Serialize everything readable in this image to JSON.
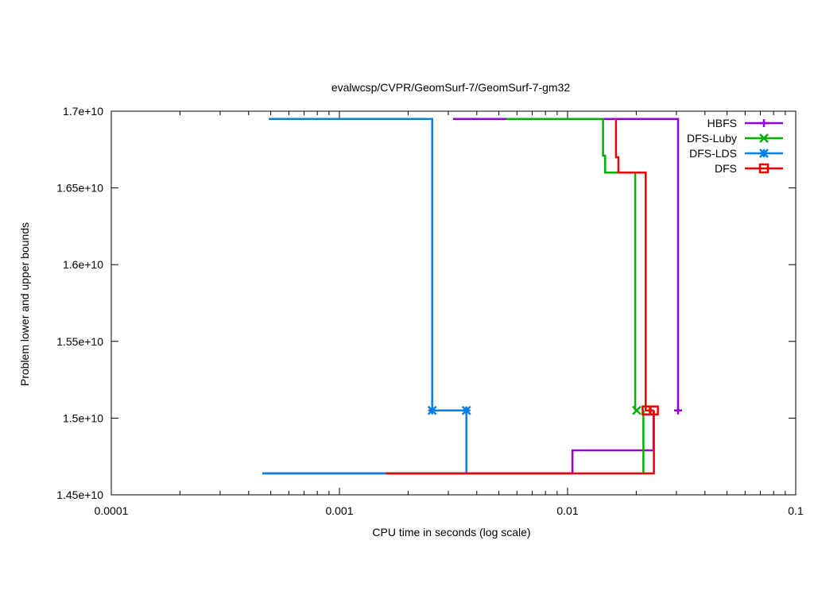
{
  "chart_data": {
    "type": "line",
    "title": "evalwcsp/CVPR/GeomSurf-7/GeomSurf-7-gm32",
    "xlabel": "CPU time in seconds (log scale)",
    "ylabel": "Problem lower and upper bounds",
    "xscale": "log",
    "xlim": [
      0.0001,
      0.1
    ],
    "ylim": [
      14500000000,
      17000000000
    ],
    "xticks": [
      0.0001,
      0.001,
      0.01,
      0.1
    ],
    "xtick_labels": [
      "0.0001",
      "0.001",
      "0.01",
      "0.1"
    ],
    "yticks": [
      14500000000,
      15000000000,
      15500000000,
      16000000000,
      16500000000,
      17000000000
    ],
    "ytick_labels": [
      "1.45e+10",
      "1.5e+10",
      "1.55e+10",
      "1.6e+10",
      "1.65e+10",
      "1.7e+10"
    ],
    "grid": false,
    "legend_position": "top-right",
    "series": [
      {
        "name": "HBFS",
        "color": "#9400d3",
        "marker": "plus",
        "upper": [
          [
            0.00315,
            16950000000
          ],
          [
            0.0305,
            16950000000
          ],
          [
            0.0305,
            15050000000
          ],
          [
            0.0315,
            15050000000
          ]
        ],
        "lower": [
          [
            0.00046,
            14640000000
          ],
          [
            0.0105,
            14640000000
          ],
          [
            0.0105,
            14790000000
          ],
          [
            0.0238,
            14790000000
          ],
          [
            0.0238,
            15050000000
          ]
        ],
        "markers": [
          [
            0.0305,
            15050000000
          ]
        ]
      },
      {
        "name": "DFS-Luby",
        "color": "#00b000",
        "marker": "x",
        "upper": [
          [
            0.0054,
            16950000000
          ],
          [
            0.0143,
            16950000000
          ],
          [
            0.0143,
            16710000000
          ],
          [
            0.0146,
            16710000000
          ],
          [
            0.0146,
            16600000000
          ],
          [
            0.0198,
            16600000000
          ],
          [
            0.0198,
            15050000000
          ]
        ],
        "lower": [
          [
            0.0215,
            14640000000
          ],
          [
            0.0215,
            15050000000
          ]
        ],
        "markers": [
          [
            0.0201,
            15050000000
          ]
        ]
      },
      {
        "name": "DFS-LDS",
        "color": "#0a7ee0",
        "marker": "star",
        "upper": [
          [
            0.00049,
            16950000000
          ],
          [
            0.00255,
            16950000000
          ],
          [
            0.00255,
            15050000000
          ],
          [
            0.0036,
            15050000000
          ]
        ],
        "lower": [
          [
            0.00046,
            14640000000
          ],
          [
            0.0036,
            14640000000
          ],
          [
            0.0036,
            15050000000
          ]
        ],
        "markers": [
          [
            0.00255,
            15050000000
          ],
          [
            0.0036,
            15050000000
          ]
        ]
      },
      {
        "name": "DFS",
        "color": "#ee0000",
        "marker": "square",
        "upper": [
          [
            0.0163,
            16950000000
          ],
          [
            0.0163,
            16700000000
          ],
          [
            0.0167,
            16700000000
          ],
          [
            0.0167,
            16600000000
          ],
          [
            0.022,
            16600000000
          ],
          [
            0.022,
            15050000000
          ],
          [
            0.0239,
            15050000000
          ]
        ],
        "lower": [
          [
            0.0016,
            14640000000
          ],
          [
            0.0239,
            14640000000
          ],
          [
            0.0239,
            15050000000
          ]
        ],
        "markers": [
          [
            0.0222,
            15050000000
          ],
          [
            0.0239,
            15050000000
          ]
        ]
      }
    ]
  }
}
